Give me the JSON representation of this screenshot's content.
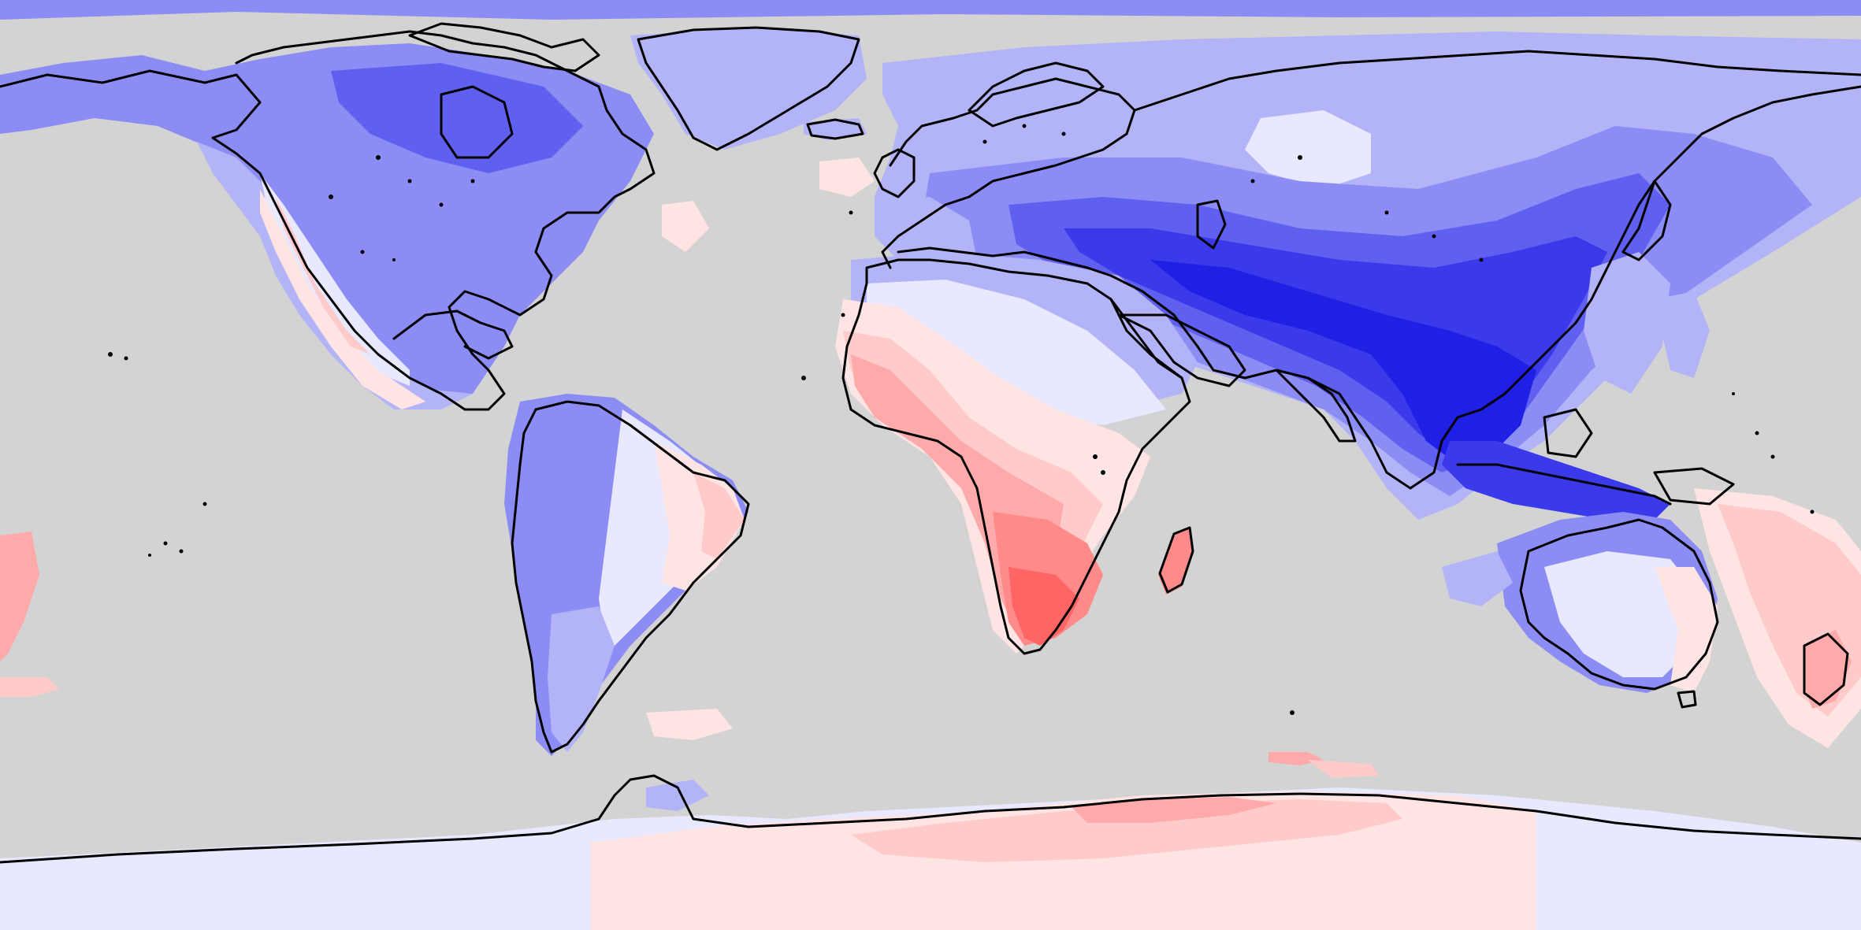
{
  "map": {
    "projection": "equirectangular",
    "background_color": "#d3d3d3",
    "coastline_color": "#000000",
    "ocean_masked": true,
    "palette": {
      "blue_6": "#1f1fe6",
      "blue_5": "#3a3aeb",
      "blue_4": "#5f5ff0",
      "blue_3": "#8c8cf5",
      "blue_2": "#b3b3f8",
      "blue_1": "#e8e8ff",
      "red_1": "#ffe4e4",
      "red_2": "#ffcaca",
      "red_3": "#ffaaaa",
      "red_4": "#ff8a8a",
      "red_5": "#ff6565"
    }
  }
}
